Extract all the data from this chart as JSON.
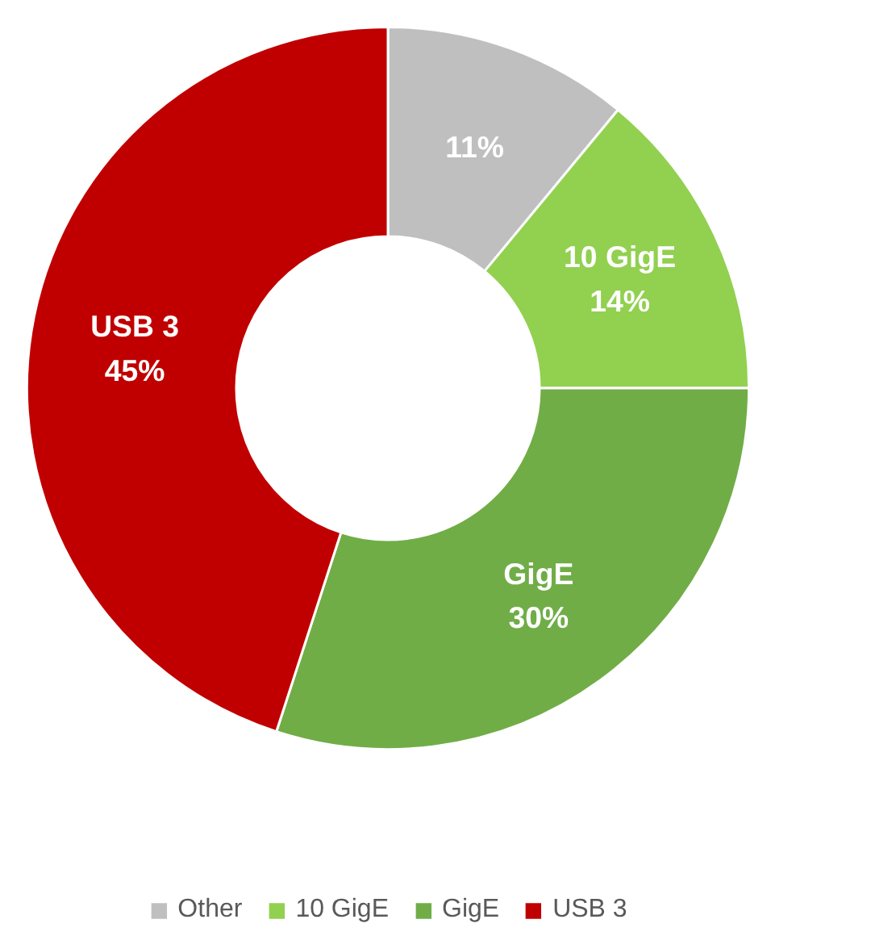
{
  "chart_data": {
    "type": "donut",
    "categories": [
      "Other",
      "10 GigE",
      "GigE",
      "USB 3"
    ],
    "values": [
      11,
      14,
      30,
      45
    ],
    "colors": [
      "#bfbfbf",
      "#92d050",
      "#70ad47",
      "#c00000"
    ],
    "value_labels": [
      "11%",
      "10 GigE\n14%",
      "GigE\n30%",
      "USB 3\n45%"
    ],
    "legend": "bottom"
  }
}
